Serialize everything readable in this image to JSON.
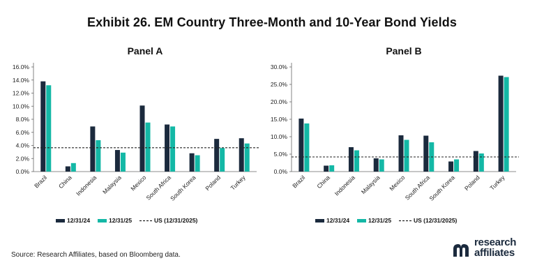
{
  "title": "Exhibit 26. EM Country Three-Month and 10-Year Bond Yields",
  "source": "Source: Research Affiliates, based on Bloomberg data.",
  "logo": {
    "line1": "research",
    "line2": "affiliates",
    "icon": "research-affiliates-mark"
  },
  "colors": {
    "series_2024": "#1b2a3d",
    "series_2025": "#14b8a6",
    "us_line": "#222222",
    "axis": "#666666"
  },
  "chart_data": [
    {
      "type": "bar",
      "title": "Panel A",
      "categories": [
        "Brazil",
        "China",
        "Indonesia",
        "Malaysia",
        "Mexico",
        "South Africa",
        "South Korea",
        "Poland",
        "Turkey"
      ],
      "series": [
        {
          "name": "12/31/24",
          "values": [
            13.8,
            0.8,
            6.9,
            3.3,
            10.1,
            7.2,
            2.8,
            5.0,
            5.1
          ]
        },
        {
          "name": "12/31/25",
          "values": [
            13.2,
            1.3,
            4.8,
            2.9,
            7.5,
            6.9,
            2.5,
            3.6,
            4.3
          ]
        }
      ],
      "reference_line": {
        "name": "US (12/31/2025)",
        "value": 3.65,
        "style": "dashed"
      },
      "ylim": [
        0,
        16
      ],
      "yticks": [
        0,
        2,
        4,
        6,
        8,
        10,
        12,
        14,
        16
      ],
      "ytick_labels": [
        "0.0%",
        "2.0%",
        "4.0%",
        "6.0%",
        "8.0%",
        "10.0%",
        "12.0%",
        "14.0%",
        "16.0%"
      ],
      "xlabel": "",
      "ylabel": "",
      "grid": false,
      "legend_position": "bottom"
    },
    {
      "type": "bar",
      "title": "Panel B",
      "categories": [
        "Brazil",
        "China",
        "Indonesia",
        "Malaysia",
        "Mexico",
        "South Africa",
        "South Korea",
        "Poland",
        "Turkey"
      ],
      "series": [
        {
          "name": "12/31/24",
          "values": [
            15.2,
            1.7,
            7.0,
            3.8,
            10.4,
            10.3,
            2.9,
            5.9,
            27.5
          ]
        },
        {
          "name": "12/31/25",
          "values": [
            13.8,
            1.8,
            6.1,
            3.5,
            9.1,
            8.4,
            3.5,
            5.2,
            27.1
          ]
        }
      ],
      "reference_line": {
        "name": "US (12/31/2025)",
        "value": 4.2,
        "style": "dashed"
      },
      "ylim": [
        0,
        30
      ],
      "yticks": [
        0,
        5,
        10,
        15,
        20,
        25,
        30
      ],
      "ytick_labels": [
        "0.0%",
        "5.0%",
        "10.0%",
        "15.0%",
        "20.0%",
        "25.0%",
        "30.0%"
      ],
      "xlabel": "",
      "ylabel": "",
      "grid": false,
      "legend_position": "bottom"
    }
  ]
}
